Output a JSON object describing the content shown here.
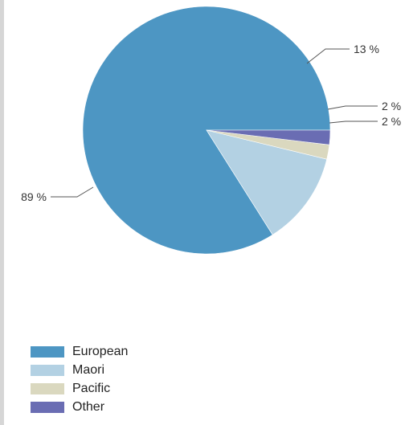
{
  "chart_data": {
    "type": "pie",
    "title": "",
    "categories": [
      "European",
      "Maori",
      "Pacific",
      "Other"
    ],
    "values": [
      89,
      13,
      2,
      2
    ],
    "value_labels": [
      "89 %",
      "13 %",
      "2 %",
      "2 %"
    ],
    "colors": [
      "#4d96c3",
      "#b3d1e3",
      "#dad8bf",
      "#6a6db3"
    ],
    "legend_position": "bottom-left",
    "start_angle_deg": 0,
    "direction": "counterclockwise"
  }
}
